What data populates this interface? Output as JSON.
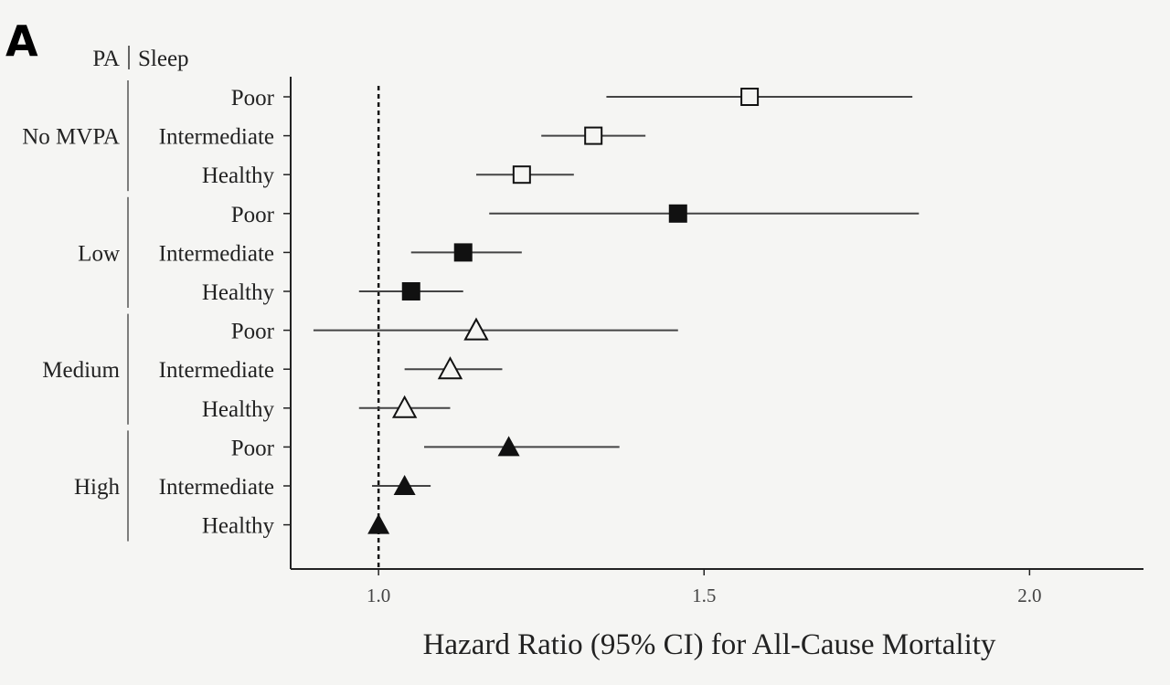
{
  "chart_data": {
    "type": "forest",
    "panel_label": "A",
    "header": {
      "pa": "PA",
      "sleep": "Sleep"
    },
    "xlabel": "Hazard Ratio (95% CI) for All-Cause Mortality",
    "xlim": [
      0.865,
      2.175
    ],
    "xticks": [
      {
        "value": 1.0,
        "label": "1.0"
      },
      {
        "value": 1.5,
        "label": "1.5"
      },
      {
        "value": 2.0,
        "label": "2.0"
      }
    ],
    "reference_line": 1.0,
    "groups": [
      {
        "name": "No MVPA",
        "marker": "open-square",
        "rows": [
          {
            "sleep": "Poor",
            "hr": 1.57,
            "lo": 1.35,
            "hi": 1.82
          },
          {
            "sleep": "Intermediate",
            "hr": 1.33,
            "lo": 1.25,
            "hi": 1.41
          },
          {
            "sleep": "Healthy",
            "hr": 1.22,
            "lo": 1.15,
            "hi": 1.3
          }
        ]
      },
      {
        "name": "Low",
        "marker": "filled-square",
        "rows": [
          {
            "sleep": "Poor",
            "hr": 1.46,
            "lo": 1.17,
            "hi": 1.83
          },
          {
            "sleep": "Intermediate",
            "hr": 1.13,
            "lo": 1.05,
            "hi": 1.22
          },
          {
            "sleep": "Healthy",
            "hr": 1.05,
            "lo": 0.97,
            "hi": 1.13
          }
        ]
      },
      {
        "name": "Medium",
        "marker": "open-triangle",
        "rows": [
          {
            "sleep": "Poor",
            "hr": 1.15,
            "lo": 0.9,
            "hi": 1.46
          },
          {
            "sleep": "Intermediate",
            "hr": 1.11,
            "lo": 1.04,
            "hi": 1.19
          },
          {
            "sleep": "Healthy",
            "hr": 1.04,
            "lo": 0.97,
            "hi": 1.11
          }
        ]
      },
      {
        "name": "High",
        "marker": "filled-triangle",
        "rows": [
          {
            "sleep": "Poor",
            "hr": 1.2,
            "lo": 1.07,
            "hi": 1.37
          },
          {
            "sleep": "Intermediate",
            "hr": 1.04,
            "lo": 0.99,
            "hi": 1.08
          },
          {
            "sleep": "Healthy",
            "hr": 1.0,
            "lo": 1.0,
            "hi": 1.0
          }
        ]
      }
    ],
    "colors": {
      "line": "#444444",
      "marker": "#111111",
      "background": "#f5f5f3"
    }
  }
}
